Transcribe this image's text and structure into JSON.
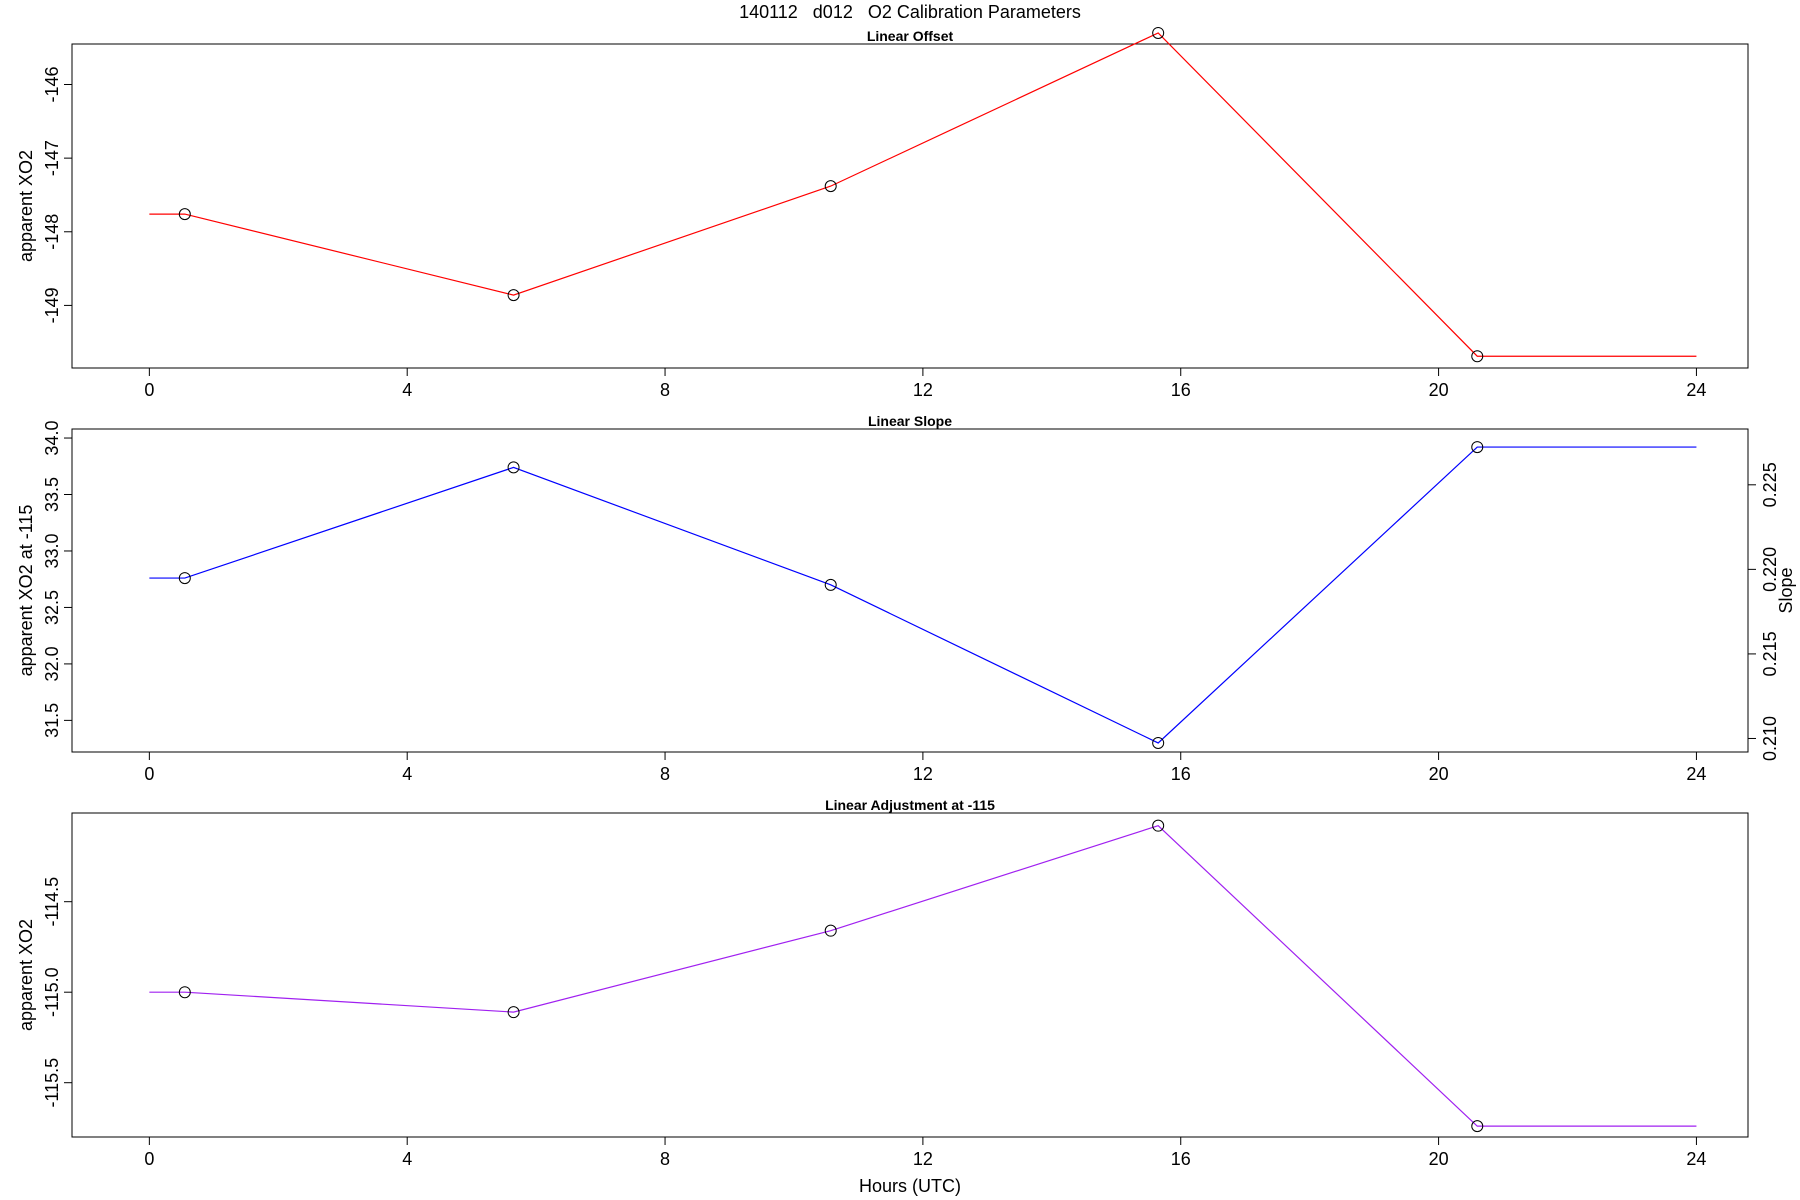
{
  "figure": {
    "title": "140112   d012   O2 Calibration Parameters",
    "xlabel": "Hours (UTC)"
  },
  "chart_data": [
    {
      "type": "line",
      "title": "Linear Offset",
      "xlabel": "",
      "ylabel": "apparent XO2",
      "xlim": [
        -1.2,
        24.8
      ],
      "ylim": [
        -149.85,
        -145.45
      ],
      "x_ticks": [
        0,
        4,
        8,
        12,
        16,
        20,
        24
      ],
      "y_ticks": [
        -149,
        -148,
        -147,
        -146
      ],
      "series": [
        {
          "color": "#ff0000",
          "x": [
            0,
            0.55,
            5.65,
            10.57,
            15.65,
            20.6,
            24
          ],
          "y": [
            -147.76,
            -147.76,
            -148.86,
            -147.38,
            -145.3,
            -149.69,
            -149.69
          ],
          "markers": [
            1,
            2,
            3,
            4,
            5
          ]
        }
      ]
    },
    {
      "type": "line",
      "title": "Linear Slope",
      "xlabel": "",
      "ylabel": "apparent XO2 at -115",
      "y2label": "Slope",
      "xlim": [
        -1.2,
        24.8
      ],
      "ylim": [
        31.22,
        34.08
      ],
      "y2lim": [
        0.2092,
        0.2283
      ],
      "x_ticks": [
        0,
        4,
        8,
        12,
        16,
        20,
        24
      ],
      "y_ticks": [
        "31.5",
        "32.0",
        "32.5",
        "33.0",
        "33.5",
        "34.0"
      ],
      "y2_ticks": [
        "0.210",
        "0.215",
        "0.220",
        "0.225"
      ],
      "series": [
        {
          "color": "#0000ff",
          "x": [
            0,
            0.55,
            5.65,
            10.57,
            15.65,
            20.6,
            24
          ],
          "y": [
            32.76,
            32.76,
            33.74,
            32.7,
            31.3,
            33.92,
            33.92
          ],
          "markers": [
            1,
            2,
            3,
            4,
            5
          ]
        }
      ]
    },
    {
      "type": "line",
      "title": "Linear Adjustment at -115",
      "xlabel": "Hours (UTC)",
      "ylabel": "apparent XO2",
      "xlim": [
        -1.2,
        24.8
      ],
      "ylim": [
        -115.8,
        -114.01
      ],
      "x_ticks": [
        0,
        4,
        8,
        12,
        16,
        20,
        24
      ],
      "y_ticks": [
        "-115.5",
        "-115.0",
        "-114.5"
      ],
      "series": [
        {
          "color": "#a020f0",
          "x": [
            0,
            0.55,
            5.65,
            10.57,
            15.65,
            20.6,
            24
          ],
          "y": [
            -115.0,
            -115.0,
            -115.11,
            -114.66,
            -114.08,
            -115.74,
            -115.74
          ],
          "markers": [
            1,
            2,
            3,
            4,
            5
          ]
        }
      ]
    }
  ]
}
